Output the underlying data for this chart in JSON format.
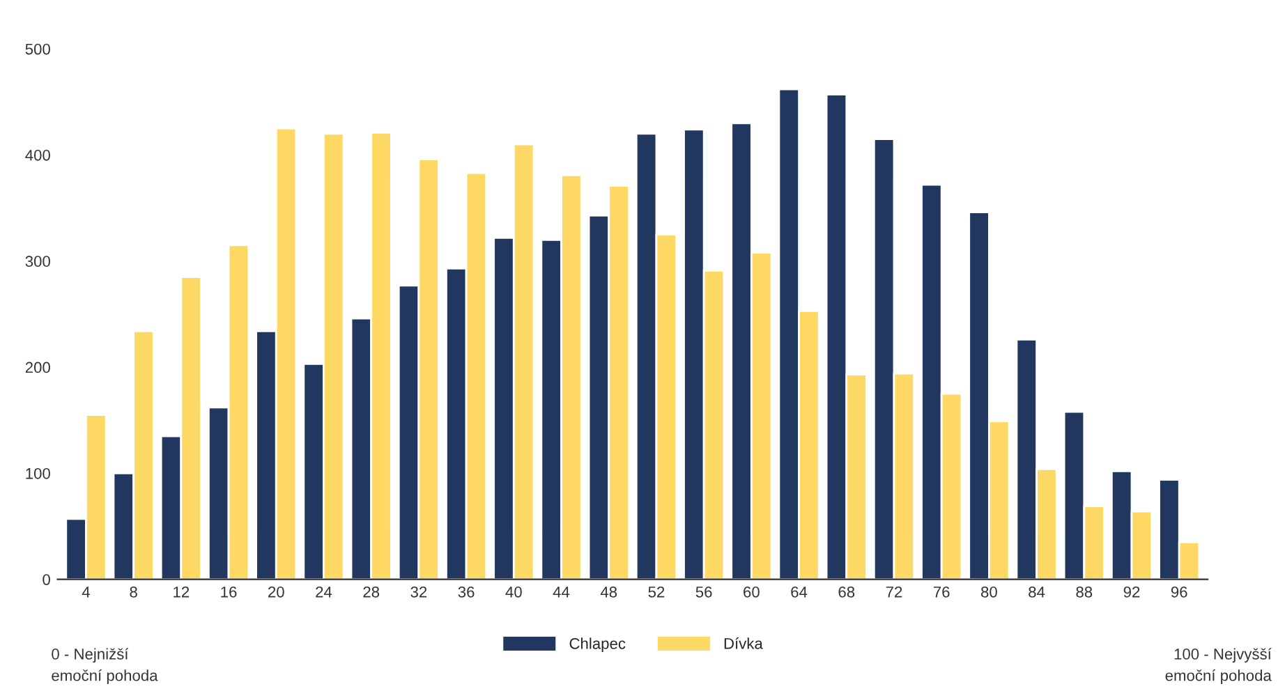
{
  "chart_data": {
    "type": "bar",
    "categories": [
      "4",
      "8",
      "12",
      "16",
      "20",
      "24",
      "28",
      "32",
      "36",
      "40",
      "44",
      "48",
      "52",
      "56",
      "60",
      "64",
      "68",
      "72",
      "76",
      "80",
      "84",
      "88",
      "92",
      "96"
    ],
    "series": [
      {
        "name": "Chlapec",
        "color": "#22375f",
        "values": [
          57,
          100,
          135,
          162,
          234,
          203,
          246,
          277,
          293,
          322,
          320,
          343,
          420,
          424,
          430,
          462,
          457,
          415,
          372,
          346,
          226,
          158,
          102,
          94
        ]
      },
      {
        "name": "Dívka",
        "color": "#fdd864",
        "values": [
          155,
          234,
          285,
          315,
          425,
          420,
          421,
          396,
          383,
          410,
          381,
          371,
          325,
          291,
          308,
          253,
          193,
          194,
          175,
          149,
          104,
          69,
          64,
          35
        ]
      }
    ],
    "ylim": [
      0,
      500
    ],
    "yticks": [
      0,
      100,
      200,
      300,
      400,
      500
    ],
    "grid": false,
    "legend": "bottom",
    "annotations": [
      "0 - Nejnižší\nemoční pohoda",
      "100 - Nejvyšší\nemoční pohoda"
    ]
  }
}
